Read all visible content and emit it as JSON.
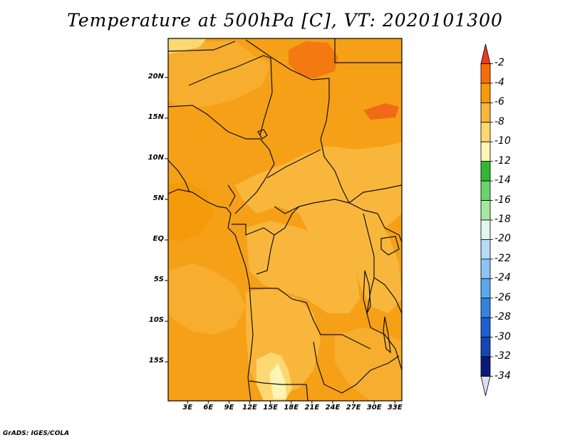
{
  "title": "Temperature at 500hPa [C], VT: 2020101300",
  "credit": "GrADS: IGES/COLA",
  "map": {
    "lat_labels": [
      "20N",
      "15N",
      "10N",
      "5N",
      "EQ",
      "5S",
      "10S",
      "15S"
    ],
    "lon_labels": [
      "3E",
      "6E",
      "9E",
      "12E",
      "15E",
      "18E",
      "21E",
      "24E",
      "27E",
      "30E",
      "33E"
    ],
    "lat_range": [
      -19.8,
      24.8
    ],
    "lon_range": [
      0.2,
      34.0
    ]
  },
  "colorbar": {
    "labels": [
      "-2",
      "-4",
      "-6",
      "-8",
      "-10",
      "-12",
      "-14",
      "-16",
      "-18",
      "-20",
      "-22",
      "-24",
      "-26",
      "-28",
      "-30",
      "-32",
      "-34"
    ],
    "colors": [
      "#f03a1c",
      "#f56e0a",
      "#f59a0a",
      "#f8b73c",
      "#fcd873",
      "#fdf4b6",
      "#32b832",
      "#6ad46a",
      "#a8e6a0",
      "#def8f0",
      "#b6dcf8",
      "#8cc4f4",
      "#5aa8ec",
      "#3282e0",
      "#1e5ed0",
      "#1446b4",
      "#0a1a78",
      "#dcdcf4"
    ]
  }
}
